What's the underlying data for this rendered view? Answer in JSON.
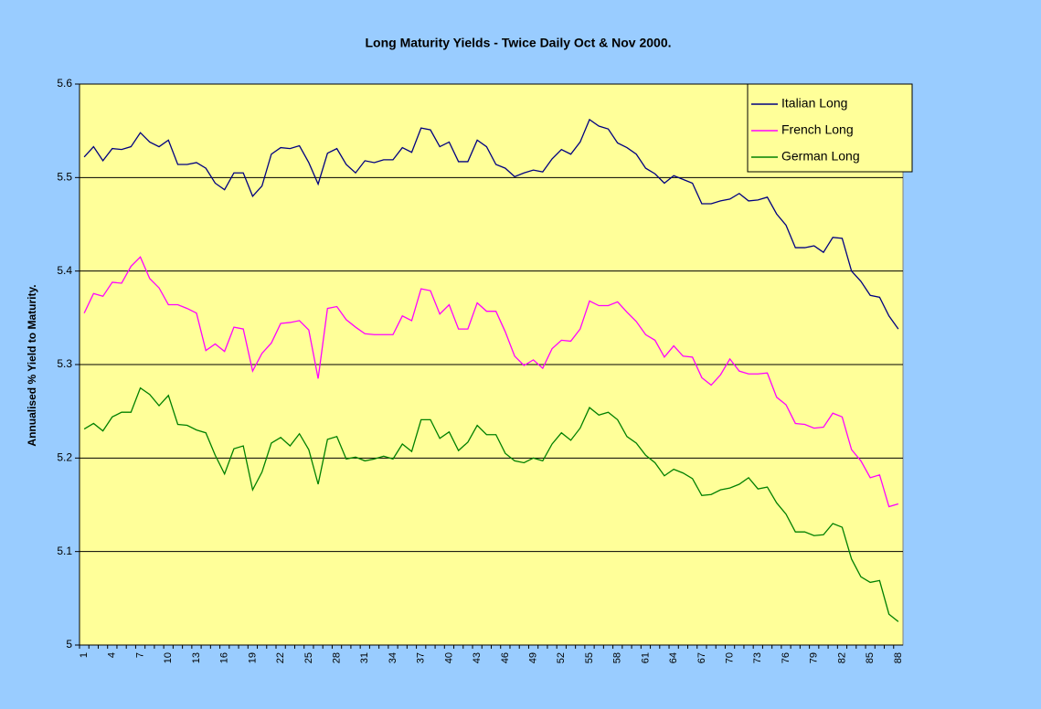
{
  "chart_data": {
    "type": "line",
    "title": "Long Maturity Yields - Twice Daily Oct & Nov 2000.",
    "y_label": "Annualised % Yield to Maturity.",
    "categories": [
      1,
      null,
      null,
      4,
      null,
      null,
      7,
      null,
      null,
      10,
      null,
      null,
      13,
      null,
      null,
      16,
      null,
      null,
      19,
      null,
      null,
      22,
      null,
      null,
      25,
      null,
      null,
      28,
      null,
      null,
      31,
      null,
      null,
      34,
      null,
      null,
      37,
      null,
      null,
      40,
      null,
      null,
      43,
      null,
      null,
      46,
      null,
      null,
      49,
      null,
      null,
      52,
      null,
      null,
      55,
      null,
      null,
      58,
      null,
      null,
      61,
      null,
      null,
      64,
      null,
      null,
      67,
      null,
      null,
      70,
      null,
      null,
      73,
      null,
      null,
      76,
      null,
      null,
      79,
      null,
      null,
      82,
      null,
      null,
      85,
      null,
      null,
      88
    ],
    "ylim": [
      5,
      5.6
    ],
    "yticks": [
      5,
      5.1,
      5.2,
      5.3,
      5.4,
      5.5,
      5.6
    ],
    "grid": true,
    "legend": "top-right",
    "background": "#99ccff",
    "plot_background": "#ffff99",
    "series": [
      {
        "name": "Italian Long",
        "color": "#000080",
        "values": [
          5.522,
          5.533,
          5.518,
          5.531,
          5.53,
          5.533,
          5.548,
          5.538,
          5.533,
          5.54,
          5.514,
          5.514,
          5.516,
          5.51,
          5.494,
          5.487,
          5.505,
          5.505,
          5.48,
          5.491,
          5.525,
          5.532,
          5.531,
          5.534,
          5.516,
          5.493,
          5.526,
          5.531,
          5.514,
          5.505,
          5.518,
          5.516,
          5.519,
          5.519,
          5.532,
          5.527,
          5.553,
          5.551,
          5.533,
          5.538,
          5.517,
          5.517,
          5.54,
          5.533,
          5.514,
          5.51,
          5.501,
          5.505,
          5.508,
          5.506,
          5.52,
          5.53,
          5.525,
          5.538,
          5.562,
          5.555,
          5.552,
          5.537,
          5.532,
          5.525,
          5.51,
          5.504,
          5.494,
          5.502,
          5.498,
          5.494,
          5.472,
          5.472,
          5.475,
          5.477,
          5.483,
          5.475,
          5.476,
          5.479,
          5.461,
          5.449,
          5.425,
          5.425,
          5.427,
          5.42,
          5.436,
          5.435,
          5.4,
          5.389,
          5.374,
          5.372,
          5.352,
          5.338
        ]
      },
      {
        "name": "French Long",
        "color": "#ff00ff",
        "values": [
          5.355,
          5.376,
          5.373,
          5.388,
          5.387,
          5.405,
          5.415,
          5.392,
          5.382,
          5.364,
          5.364,
          5.36,
          5.355,
          5.315,
          5.322,
          5.314,
          5.34,
          5.338,
          5.293,
          5.312,
          5.323,
          5.344,
          5.345,
          5.347,
          5.337,
          5.285,
          5.36,
          5.362,
          5.348,
          5.34,
          5.333,
          5.332,
          5.332,
          5.332,
          5.352,
          5.347,
          5.381,
          5.379,
          5.354,
          5.364,
          5.338,
          5.338,
          5.366,
          5.357,
          5.357,
          5.335,
          5.309,
          5.299,
          5.305,
          5.296,
          5.317,
          5.326,
          5.325,
          5.338,
          5.368,
          5.363,
          5.363,
          5.367,
          5.356,
          5.346,
          5.332,
          5.326,
          5.308,
          5.32,
          5.309,
          5.308,
          5.286,
          5.278,
          5.289,
          5.306,
          5.293,
          5.29,
          5.29,
          5.291,
          5.265,
          5.257,
          5.237,
          5.236,
          5.232,
          5.233,
          5.248,
          5.244,
          5.209,
          5.197,
          5.179,
          5.182,
          5.148,
          5.151
        ]
      },
      {
        "name": "German Long",
        "color": "#008000",
        "values": [
          5.231,
          5.237,
          5.229,
          5.244,
          5.249,
          5.249,
          5.275,
          5.268,
          5.256,
          5.267,
          5.236,
          5.235,
          5.23,
          5.227,
          5.203,
          5.183,
          5.21,
          5.213,
          5.166,
          5.185,
          5.216,
          5.222,
          5.213,
          5.226,
          5.209,
          5.172,
          5.22,
          5.223,
          5.199,
          5.201,
          5.197,
          5.199,
          5.202,
          5.199,
          5.215,
          5.207,
          5.241,
          5.241,
          5.221,
          5.228,
          5.208,
          5.217,
          5.235,
          5.225,
          5.225,
          5.205,
          5.197,
          5.195,
          5.2,
          5.197,
          5.215,
          5.227,
          5.219,
          5.232,
          5.254,
          5.246,
          5.249,
          5.241,
          5.223,
          5.216,
          5.203,
          5.195,
          5.181,
          5.188,
          5.184,
          5.178,
          5.16,
          5.161,
          5.166,
          5.168,
          5.172,
          5.179,
          5.167,
          5.169,
          5.152,
          5.14,
          5.121,
          5.121,
          5.117,
          5.118,
          5.13,
          5.126,
          5.092,
          5.073,
          5.067,
          5.069,
          5.033,
          5.025
        ]
      }
    ]
  }
}
